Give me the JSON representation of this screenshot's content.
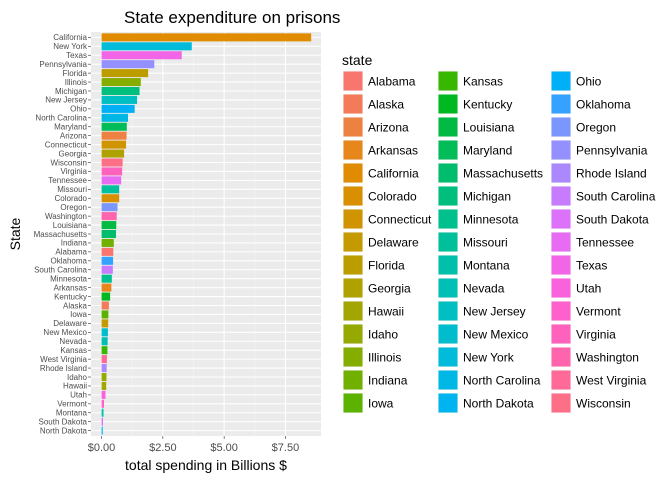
{
  "chart_data": {
    "type": "bar",
    "orientation": "horizontal",
    "title": "State expenditure on prisons",
    "xlabel": "total spending in Billions $",
    "ylabel": "State",
    "x_ticks": [
      "$0.00",
      "$2.50",
      "$5.00",
      "$7.50"
    ],
    "x_tick_values": [
      0,
      2.5,
      5,
      7.5
    ],
    "xlim": [
      -0.43,
      8.95
    ],
    "grid": true,
    "background": "#ebebeb",
    "legend": {
      "title": "state",
      "position": "right",
      "columns": 3
    },
    "categories": [
      "California",
      "New York",
      "Texas",
      "Pennsylvania",
      "Florida",
      "Illinois",
      "Michigan",
      "New Jersey",
      "Ohio",
      "North Carolina",
      "Maryland",
      "Arizona",
      "Connecticut",
      "Georgia",
      "Wisconsin",
      "Virginia",
      "Tennessee",
      "Missouri",
      "Colorado",
      "Oregon",
      "Washington",
      "Louisiana",
      "Massachusetts",
      "Indiana",
      "Alabama",
      "Oklahoma",
      "South Carolina",
      "Minnesota",
      "Arkansas",
      "Kentucky",
      "Alaska",
      "Iowa",
      "Delaware",
      "New Mexico",
      "Nevada",
      "Kansas",
      "West Virginia",
      "Rhode Island",
      "Idaho",
      "Hawaii",
      "Utah",
      "Vermont",
      "Montana",
      "South Dakota",
      "North Dakota"
    ],
    "values": [
      8.55,
      3.68,
      3.27,
      2.15,
      1.9,
      1.6,
      1.55,
      1.45,
      1.35,
      1.08,
      1.03,
      1.02,
      1.0,
      0.92,
      0.86,
      0.84,
      0.8,
      0.72,
      0.72,
      0.65,
      0.62,
      0.6,
      0.59,
      0.5,
      0.48,
      0.47,
      0.46,
      0.42,
      0.4,
      0.35,
      0.3,
      0.28,
      0.27,
      0.26,
      0.25,
      0.24,
      0.22,
      0.21,
      0.2,
      0.19,
      0.16,
      0.1,
      0.08,
      0.06,
      0.05
    ],
    "legend_items": [
      {
        "label": "Alabama",
        "color": "#F8766D"
      },
      {
        "label": "Alaska",
        "color": "#F37B59"
      },
      {
        "label": "Arizona",
        "color": "#ED8141"
      },
      {
        "label": "Arkansas",
        "color": "#E7861B"
      },
      {
        "label": "California",
        "color": "#E08B00"
      },
      {
        "label": "Colorado",
        "color": "#D89000"
      },
      {
        "label": "Connecticut",
        "color": "#CF9400"
      },
      {
        "label": "Delaware",
        "color": "#C59900"
      },
      {
        "label": "Florida",
        "color": "#BB9D00"
      },
      {
        "label": "Georgia",
        "color": "#AFA100"
      },
      {
        "label": "Hawaii",
        "color": "#A3A500"
      },
      {
        "label": "Idaho",
        "color": "#95A900"
      },
      {
        "label": "Illinois",
        "color": "#85AD00"
      },
      {
        "label": "Indiana",
        "color": "#72B000"
      },
      {
        "label": "Iowa",
        "color": "#5BB300"
      },
      {
        "label": "Kansas",
        "color": "#39B600"
      },
      {
        "label": "Kentucky",
        "color": "#00B81F"
      },
      {
        "label": "Louisiana",
        "color": "#00BA42"
      },
      {
        "label": "Maryland",
        "color": "#00BC59"
      },
      {
        "label": "Massachusetts",
        "color": "#00BD6D"
      },
      {
        "label": "Michigan",
        "color": "#00BF7D"
      },
      {
        "label": "Minnesota",
        "color": "#00C08D"
      },
      {
        "label": "Missouri",
        "color": "#00C09B"
      },
      {
        "label": "Montana",
        "color": "#00C0A9"
      },
      {
        "label": "Nevada",
        "color": "#00C0B5"
      },
      {
        "label": "New Jersey",
        "color": "#00BFC2"
      },
      {
        "label": "New Mexico",
        "color": "#00BDCD"
      },
      {
        "label": "New York",
        "color": "#00BBDA"
      },
      {
        "label": "North Carolina",
        "color": "#00B8E5"
      },
      {
        "label": "North Dakota",
        "color": "#00B4EF"
      },
      {
        "label": "Ohio",
        "color": "#00B0F6"
      },
      {
        "label": "Oklahoma",
        "color": "#35A2FF"
      },
      {
        "label": "Oregon",
        "color": "#7997FF"
      },
      {
        "label": "Pennsylvania",
        "color": "#9590FF"
      },
      {
        "label": "Rhode Island",
        "color": "#AC88FF"
      },
      {
        "label": "South Carolina",
        "color": "#C77CFF"
      },
      {
        "label": "South Dakota",
        "color": "#DC71FA"
      },
      {
        "label": "Tennessee",
        "color": "#E76BF3"
      },
      {
        "label": "Texas",
        "color": "#F265E7"
      },
      {
        "label": "Utah",
        "color": "#FA62DB"
      },
      {
        "label": "Vermont",
        "color": "#FF61CC"
      },
      {
        "label": "Virginia",
        "color": "#FF62BC"
      },
      {
        "label": "Washington",
        "color": "#FF65AC"
      },
      {
        "label": "West Virginia",
        "color": "#FF6A98"
      },
      {
        "label": "Wisconsin",
        "color": "#FD6F86"
      }
    ]
  }
}
